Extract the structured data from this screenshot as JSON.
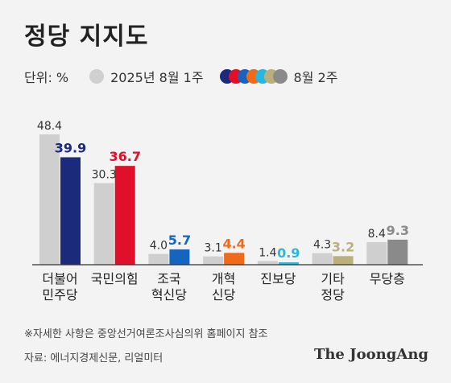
{
  "title": "정당 지지도",
  "legend": {
    "unit": "단위: %",
    "previous": "2025년 8월 1주",
    "current": "8월 2주"
  },
  "chart_data": {
    "type": "bar",
    "title": "정당 지지도",
    "unit": "%",
    "categories": [
      [
        "더불어",
        "민주당"
      ],
      [
        "국민의힘"
      ],
      [
        "조국",
        "혁신당"
      ],
      [
        "개혁",
        "신당"
      ],
      [
        "진보당"
      ],
      [
        "기타",
        "정당"
      ],
      [
        "무당층"
      ]
    ],
    "series": [
      {
        "name": "2025년 8월 1주",
        "values": [
          48.4,
          30.3,
          4.0,
          3.1,
          1.4,
          4.3,
          8.4
        ],
        "color": "#cfcfcf"
      },
      {
        "name": "8월 2주",
        "values": [
          39.9,
          36.7,
          5.7,
          4.4,
          0.9,
          3.2,
          9.3
        ],
        "colors": [
          "#1b2a7b",
          "#e0102b",
          "#1565c0",
          "#f06a1a",
          "#27b7e0",
          "#bbb07b",
          "#8a8a8a"
        ]
      }
    ],
    "ylim": [
      0,
      50
    ],
    "grid": false,
    "legend": "top-left"
  },
  "footer": {
    "note": "※자세한 사항은 중앙선거여론조사심의위 홈페이지 참조",
    "source": "자료: 에너지경제신문, 리얼미터",
    "brand": "The JoongAng"
  }
}
